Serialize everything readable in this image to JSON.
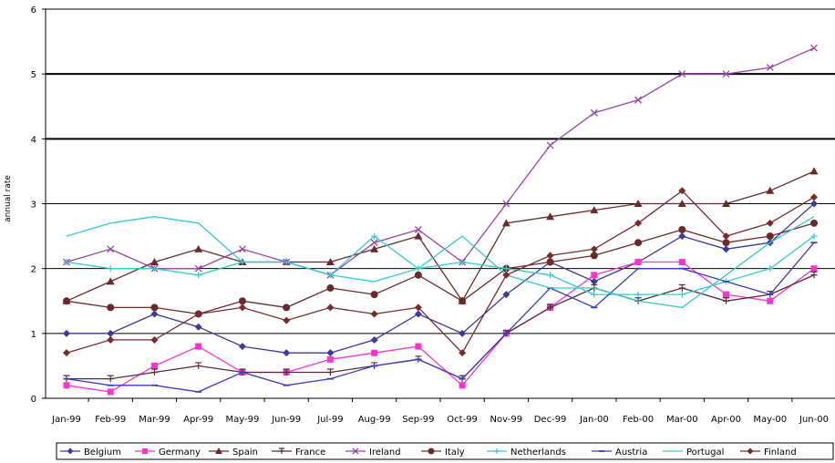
{
  "chart_data": {
    "type": "line",
    "title": "",
    "xlabel": "",
    "ylabel": "annual rate",
    "ylim": [
      0,
      6
    ],
    "yticks": [
      0,
      1,
      2,
      3,
      4,
      5,
      6
    ],
    "grid": "horizontal",
    "legend": "bottom",
    "categories": [
      "Jan-99",
      "Feb-99",
      "Mar-99",
      "Apr-99",
      "May-99",
      "Jun-99",
      "Jul-99",
      "Aug-99",
      "Sep-99",
      "Oct-99",
      "Nov-99",
      "Dec-99",
      "Jan-00",
      "Feb-00",
      "Mar-00",
      "Apr-00",
      "May-00",
      "Jun-00"
    ],
    "series": [
      {
        "name": "Belgium",
        "color": "#3b3b9c",
        "marker": "diamond",
        "values": [
          1.0,
          1.0,
          1.3,
          1.1,
          0.8,
          0.7,
          0.7,
          0.9,
          1.3,
          1.0,
          1.6,
          2.1,
          1.8,
          2.1,
          2.5,
          2.3,
          2.4,
          3.0
        ]
      },
      {
        "name": "Germany",
        "color": "#ff33cc",
        "marker": "square",
        "values": [
          0.2,
          0.1,
          0.5,
          0.8,
          0.4,
          0.4,
          0.6,
          0.7,
          0.8,
          0.2,
          1.0,
          1.4,
          1.9,
          2.1,
          2.1,
          1.6,
          1.5,
          2.0
        ]
      },
      {
        "name": "Spain",
        "color": "#6b2a2a",
        "marker": "triangle",
        "values": [
          1.5,
          1.8,
          2.1,
          2.3,
          2.1,
          2.1,
          2.1,
          2.3,
          2.5,
          1.5,
          2.7,
          2.8,
          2.9,
          3.0,
          3.0,
          3.0,
          3.2,
          3.5
        ]
      },
      {
        "name": "France",
        "color": "#5a2a3a",
        "marker": "cross",
        "values": [
          0.3,
          0.3,
          0.4,
          0.5,
          0.4,
          0.4,
          0.4,
          0.5,
          0.6,
          0.3,
          1.0,
          1.4,
          1.7,
          1.5,
          1.7,
          1.5,
          1.6,
          1.9
        ]
      },
      {
        "name": "Ireland",
        "color": "#9944aa",
        "marker": "x",
        "values": [
          2.1,
          2.3,
          2.0,
          2.0,
          2.3,
          2.1,
          1.9,
          2.4,
          2.6,
          2.1,
          3.0,
          3.9,
          4.4,
          4.6,
          5.0,
          5.0,
          5.1,
          5.4
        ]
      },
      {
        "name": "Italy",
        "color": "#6b2a2a",
        "marker": "circle",
        "values": [
          1.5,
          1.4,
          1.4,
          1.3,
          1.5,
          1.4,
          1.7,
          1.6,
          1.9,
          1.5,
          2.0,
          2.1,
          2.2,
          2.4,
          2.6,
          2.4,
          2.5,
          2.7
        ]
      },
      {
        "name": "Netherlands",
        "color": "#33cccc",
        "marker": "plus",
        "values": [
          2.1,
          2.0,
          2.0,
          1.9,
          2.1,
          2.1,
          1.9,
          2.5,
          2.0,
          2.1,
          2.0,
          1.9,
          1.6,
          1.6,
          1.6,
          1.8,
          2.0,
          2.5
        ]
      },
      {
        "name": "Austria",
        "color": "#3b3bcc",
        "marker": "dash",
        "values": [
          0.3,
          0.2,
          0.2,
          0.1,
          0.4,
          0.2,
          0.3,
          0.5,
          0.6,
          0.3,
          1.0,
          1.7,
          1.4,
          2.0,
          2.0,
          1.8,
          1.6,
          2.4
        ]
      },
      {
        "name": "Portugal",
        "color": "#33cccc",
        "marker": "none",
        "values": [
          2.5,
          2.7,
          2.8,
          2.7,
          2.1,
          2.1,
          1.9,
          1.8,
          2.0,
          2.5,
          1.9,
          1.7,
          1.7,
          1.5,
          1.4,
          1.9,
          2.4,
          2.8
        ]
      },
      {
        "name": "Finland",
        "color": "#7a2a2a",
        "marker": "diamond",
        "values": [
          0.7,
          0.9,
          0.9,
          1.3,
          1.4,
          1.2,
          1.4,
          1.3,
          1.4,
          0.7,
          1.9,
          2.2,
          2.3,
          2.7,
          3.2,
          2.5,
          2.7,
          3.1
        ]
      }
    ]
  }
}
